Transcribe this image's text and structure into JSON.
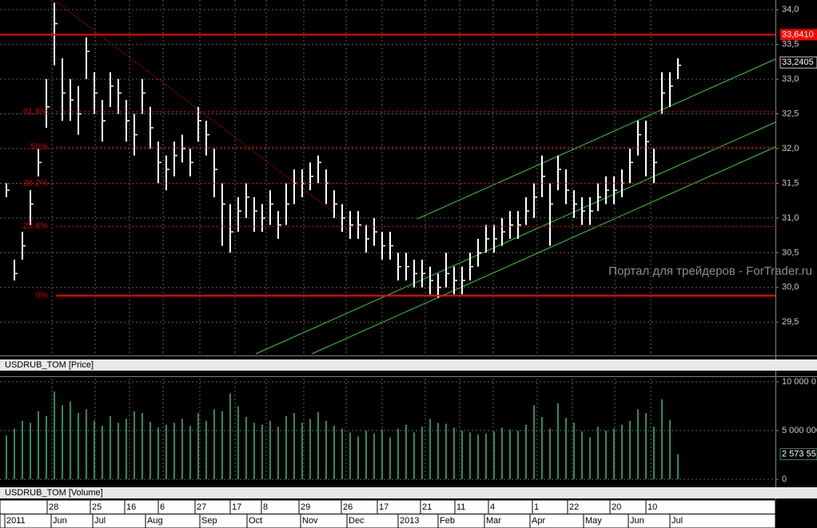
{
  "chart_data": [
    {
      "type": "ohlc",
      "label": "USDRUB_TOM [Price]",
      "watermark": "Портал для трейдеров - ForTrader.ru",
      "color": "#ffffff",
      "high": [
        31.5,
        30.4,
        30.8,
        31.4,
        32.0,
        33.0,
        34.1,
        33.3,
        33.0,
        32.9,
        33.6,
        33.1,
        32.7,
        33.1,
        33.0,
        32.7,
        32.5,
        33.0,
        32.6,
        32.1,
        31.9,
        32.1,
        32.2,
        32.0,
        32.6,
        32.4,
        32.0,
        31.5,
        31.2,
        31.3,
        31.5,
        31.3,
        31.2,
        31.4,
        31.1,
        31.5,
        31.7,
        31.7,
        31.8,
        31.9,
        31.7,
        31.4,
        31.2,
        31.1,
        31.1,
        30.9,
        31.0,
        30.8,
        30.8,
        30.5,
        30.5,
        30.4,
        30.4,
        30.3,
        30.2,
        30.5,
        30.3,
        30.3,
        30.5,
        30.7,
        30.9,
        30.9,
        31.0,
        31.1,
        31.1,
        31.3,
        31.5,
        31.9,
        31.5,
        31.9,
        31.7,
        31.4,
        31.3,
        31.3,
        31.5,
        31.6,
        31.6,
        31.7,
        32.0,
        32.4,
        32.4,
        32.0,
        33.1,
        33.1,
        33.3
      ],
      "low": [
        31.3,
        30.1,
        30.4,
        30.9,
        31.6,
        32.3,
        33.2,
        32.4,
        32.4,
        32.2,
        33.0,
        32.5,
        32.1,
        32.6,
        32.5,
        32.1,
        31.9,
        32.5,
        32.0,
        31.5,
        31.4,
        31.6,
        31.8,
        31.6,
        32.1,
        31.9,
        31.3,
        30.6,
        30.5,
        30.8,
        31.0,
        30.8,
        30.8,
        30.9,
        30.7,
        30.9,
        31.2,
        31.3,
        31.4,
        31.5,
        31.2,
        31.0,
        30.8,
        30.7,
        30.7,
        30.5,
        30.6,
        30.4,
        30.4,
        30.1,
        30.1,
        30.0,
        30.0,
        29.9,
        29.85,
        30.0,
        29.9,
        29.9,
        30.1,
        30.3,
        30.5,
        30.5,
        30.6,
        30.7,
        30.7,
        30.9,
        31.0,
        31.3,
        30.6,
        31.4,
        31.2,
        31.0,
        30.9,
        30.9,
        31.1,
        31.2,
        31.2,
        31.3,
        31.5,
        31.9,
        31.6,
        31.5,
        32.5,
        32.6,
        33.0
      ],
      "close": [
        31.4,
        30.2,
        30.6,
        31.2,
        31.8,
        32.6,
        33.8,
        32.8,
        32.7,
        32.5,
        33.4,
        32.8,
        32.4,
        32.9,
        32.8,
        32.4,
        32.2,
        32.8,
        32.3,
        31.8,
        31.7,
        31.9,
        32.0,
        31.8,
        32.4,
        32.2,
        31.7,
        31.2,
        30.8,
        31.1,
        31.3,
        31.1,
        31.0,
        31.2,
        30.9,
        31.2,
        31.5,
        31.5,
        31.6,
        31.8,
        31.5,
        31.2,
        31.0,
        30.9,
        30.9,
        30.7,
        30.8,
        30.6,
        30.6,
        30.3,
        30.3,
        30.2,
        30.2,
        30.1,
        30.0,
        30.2,
        30.1,
        30.1,
        30.3,
        30.5,
        30.7,
        30.7,
        30.8,
        30.9,
        30.9,
        31.1,
        31.3,
        31.6,
        31.2,
        31.7,
        31.4,
        31.2,
        31.1,
        31.1,
        31.3,
        31.4,
        31.4,
        31.5,
        31.8,
        32.2,
        32.1,
        31.8,
        32.8,
        32.9,
        33.2
      ],
      "ylim": [
        29.02,
        34.14
      ],
      "yticks": [
        {
          "value": 29.5,
          "label": "29,5"
        },
        {
          "value": 30.0,
          "label": "30,0"
        },
        {
          "value": 30.5,
          "label": "30,5"
        },
        {
          "value": 31.0,
          "label": "31,0"
        },
        {
          "value": 31.5,
          "label": "31,5"
        },
        {
          "value": 32.0,
          "label": "32,0"
        },
        {
          "value": 32.5,
          "label": "32,5"
        },
        {
          "value": 33.0,
          "label": "33,0"
        },
        {
          "value": 33.5,
          "label": "33,5"
        },
        {
          "value": 34.0,
          "label": "34,0"
        }
      ],
      "grid": true,
      "levels": [
        {
          "value": 32.53,
          "label": "61.8%"
        },
        {
          "value": 32.02,
          "label": "50%"
        },
        {
          "value": 31.5,
          "label": "38.2%"
        },
        {
          "value": 30.88,
          "label": "23.6%"
        },
        {
          "value": 29.88,
          "label": "0%"
        }
      ],
      "resistance": {
        "value": 33.641,
        "label": "33,6410",
        "color": "#ff0000"
      },
      "last": {
        "value": 33.2405,
        "label": "33,2405"
      }
    },
    {
      "type": "bar",
      "label": "USDRUB_TOM [Volume]",
      "color": "#2e8b57",
      "values": [
        4500000,
        5200000,
        6000000,
        5800000,
        7000000,
        6500000,
        9000000,
        7600000,
        8000000,
        6800000,
        7200000,
        6000000,
        5500000,
        6500000,
        5800000,
        6200000,
        7000000,
        6800000,
        5900000,
        5300000,
        5600000,
        5800000,
        6200000,
        5500000,
        6800000,
        6000000,
        7200000,
        7000000,
        8800000,
        7500000,
        6400000,
        5800000,
        5600000,
        6000000,
        5400000,
        6500000,
        6800000,
        5800000,
        6200000,
        6900000,
        6000000,
        5500000,
        5200000,
        4800000,
        4400000,
        5000000,
        4700000,
        5100000,
        4300000,
        5200000,
        5600000,
        4800000,
        5400000,
        6200000,
        5800000,
        5700000,
        5300000,
        5000000,
        4800000,
        4600000,
        4700000,
        4900000,
        5300000,
        5100000,
        5000000,
        5600000,
        7600000,
        6400000,
        5200000,
        7800000,
        6300000,
        5800000,
        4900000,
        4300000,
        5400000,
        5000000,
        5200000,
        5600000,
        6000000,
        7200000,
        6800000,
        5400000,
        8200000,
        6100000,
        2573550
      ],
      "ylim": [
        -330000,
        10330000
      ],
      "yticks": [
        {
          "value": 10000000,
          "label": "10 000 0"
        },
        {
          "value": 5000000,
          "label": "5 000 000"
        },
        0
      ],
      "grid": true,
      "last": {
        "value": 2573550,
        "label": "2 573 55"
      }
    }
  ],
  "x_axis": {
    "days": [
      "28",
      "25",
      "16",
      "6",
      "27",
      "17",
      "8",
      "29",
      "26",
      "17",
      "21",
      "11",
      "4",
      "1",
      "22",
      "20",
      "10"
    ],
    "months": [
      "2011",
      "Jun",
      "Jul",
      "Aug",
      "Sep",
      "Oct",
      "Nov",
      "Dec",
      "2013",
      "Feb",
      "Mar",
      "Apr",
      "May",
      "Jun",
      "Jul"
    ]
  }
}
